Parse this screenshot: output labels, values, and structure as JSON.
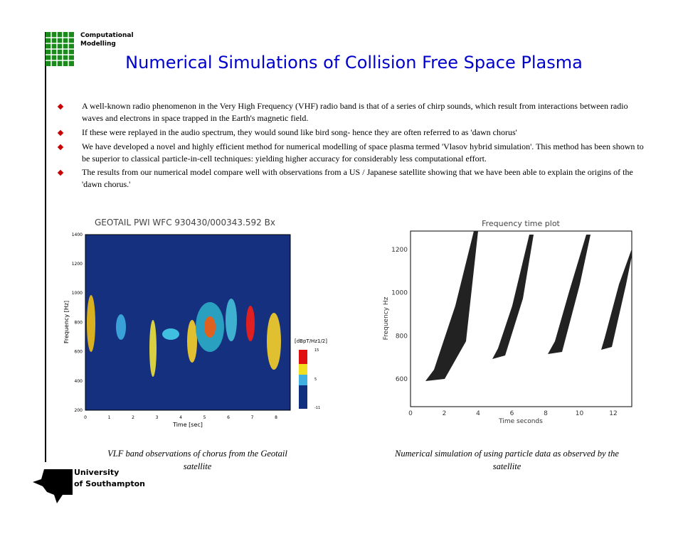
{
  "header": {
    "logo_text": [
      "Computational",
      "Modelling"
    ],
    "title": "Numerical Simulations of Collision Free Space Plasma"
  },
  "bullets": [
    "A well-known radio phenomenon in the Very High Frequency (VHF) radio band is that of a series of chirp sounds, which result from interactions between radio waves and electrons in space trapped in the Earth's magnetic field.",
    "If these were replayed in the audio spectrum, they would sound like bird song- hence they are often referred to as 'dawn chorus'",
    "We have developed a novel and highly efficient method for numerical modelling of space plasma termed 'Vlasov hybrid simulation'. This method has been shown to be superior to classical particle-in-cell techniques: yielding higher accuracy for considerably less computational effort.",
    "The results from our numerical model compare well with observations from a US / Japanese satellite showing that we have been able to explain the origins of the 'dawn chorus.'"
  ],
  "figures": [
    {
      "title": "GEOTAIL PWI WFC     930430/000343.592     Bx",
      "x_label": "Time [sec]",
      "y_label": "Frequency [Hz]",
      "xticks": [
        "0",
        "1",
        "2",
        "3",
        "4",
        "5",
        "6",
        "7",
        "8"
      ],
      "yticks": [
        "200",
        "400",
        "600",
        "800",
        "1000",
        "1200",
        "1400"
      ],
      "colorbar_label": "[dBpT/Hz1/2]",
      "colorbar_ticks": [
        "-11",
        "5",
        "15"
      ],
      "caption": "VLF band observations of chorus from the Geotail satellite"
    },
    {
      "title": "Frequency time plot",
      "x_label": "Time seconds",
      "y_label": "Frequency Hz",
      "xticks": [
        "0",
        "2",
        "4",
        "6",
        "8",
        "10",
        "12"
      ],
      "yticks": [
        "600",
        "800",
        "1000",
        "1200"
      ],
      "caption": "Numerical simulation of using particle data as observed by the satellite"
    }
  ],
  "footer": {
    "university": [
      "University",
      "of Southampton"
    ]
  }
}
